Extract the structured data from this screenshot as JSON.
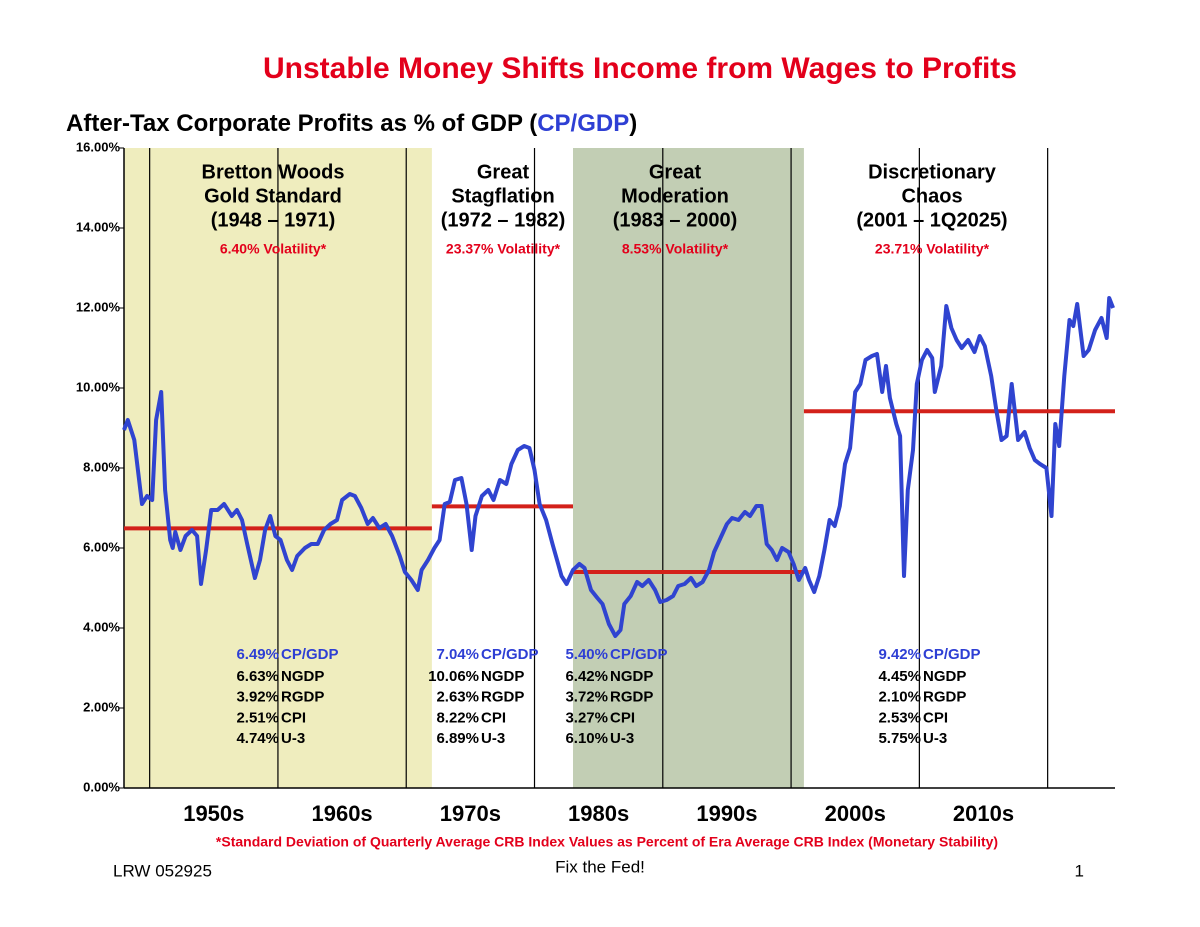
{
  "chart_data": {
    "type": "line",
    "title": "Unstable Money Shifts Income from Wages to Profits",
    "subtitle": [
      "After-Tax Corporate Profits as % of GDP (",
      "CP/GDP",
      ")"
    ],
    "footnote": "*Standard Deviation of Quarterly Average CRB Index Values as Percent of Era Average CRB Index (Monetary Stability)",
    "footer_left": "LRW 052925",
    "footer_center": "Fix the Fed!",
    "footer_right": "1",
    "xlim": [
      1948,
      2025.25
    ],
    "ylim": [
      0,
      16
    ],
    "yticks": [
      {
        "value": 0,
        "label": "0.00%"
      },
      {
        "value": 2,
        "label": "2.00%"
      },
      {
        "value": 4,
        "label": "4.00%"
      },
      {
        "value": 6,
        "label": "6.00%"
      },
      {
        "value": 8,
        "label": "8.00%"
      },
      {
        "value": 10,
        "label": "10.00%"
      },
      {
        "value": 12,
        "label": "12.00%"
      },
      {
        "value": 14,
        "label": "14.00%"
      },
      {
        "value": 16,
        "label": "16.00%"
      }
    ],
    "xticks": [
      1950,
      1960,
      1970,
      1980,
      1990,
      2000,
      2010,
      2020
    ],
    "decade_labels": [
      {
        "value": 1955,
        "label": "1950s"
      },
      {
        "value": 1965,
        "label": "1960s"
      },
      {
        "value": 1975,
        "label": "1970s"
      },
      {
        "value": 1985,
        "label": "1980s"
      },
      {
        "value": 1995,
        "label": "1990s"
      },
      {
        "value": 2005,
        "label": "2000s"
      },
      {
        "value": 2015,
        "label": "2010s"
      }
    ],
    "mean_color": "#d3211a",
    "eras": [
      {
        "lines": [
          "Bretton Woods",
          "Gold Standard",
          "(1948 – 1971)"
        ],
        "volatility": "6.40% Volatility*",
        "start": 1948,
        "end": 1972,
        "shade": "#efedbe",
        "mean": {
          "value": 6.49,
          "label": "6.49%"
        },
        "mean_name": "CP/GDP",
        "stats": [
          [
            "6.63%",
            "NGDP"
          ],
          [
            "3.92%",
            "RGDP"
          ],
          [
            "2.51%",
            "CPI"
          ],
          [
            "4.74%",
            "U-3"
          ]
        ]
      },
      {
        "lines": [
          "Great",
          "Stagflation",
          "(1972 – 1982)"
        ],
        "volatility": "23.37% Volatility*",
        "start": 1972,
        "end": 1983,
        "shade": null,
        "mean": {
          "value": 7.04,
          "label": "7.04%"
        },
        "mean_name": "CP/GDP",
        "stats": [
          [
            "10.06%",
            "NGDP"
          ],
          [
            "2.63%",
            "RGDP"
          ],
          [
            "8.22%",
            "CPI"
          ],
          [
            "6.89%",
            "U-3"
          ]
        ]
      },
      {
        "lines": [
          "Great",
          "Moderation",
          "(1983 – 2000)"
        ],
        "volatility": "8.53% Volatility*",
        "start": 1983,
        "end": 2001,
        "shade": "#c2ceb4",
        "mean": {
          "value": 5.4,
          "label": "5.40%"
        },
        "mean_name": "CP/GDP",
        "stats": [
          [
            "6.42%",
            "NGDP"
          ],
          [
            "3.72%",
            "RGDP"
          ],
          [
            "3.27%",
            "CPI"
          ],
          [
            "6.10%",
            "U-3"
          ]
        ]
      },
      {
        "lines": [
          "Discretionary",
          "Chaos",
          "(2001 – 1Q2025)"
        ],
        "volatility": "23.71% Volatility*",
        "start": 2001,
        "end": 2025.25,
        "shade": null,
        "mean": {
          "value": 9.42,
          "label": "9.42%"
        },
        "mean_name": "CP/GDP",
        "stats": [
          [
            "4.45%",
            "NGDP"
          ],
          [
            "2.10%",
            "RGDP"
          ],
          [
            "2.53%",
            "CPI"
          ],
          [
            "5.75%",
            "U-3"
          ]
        ]
      }
    ],
    "series": [
      {
        "name": "CP/GDP",
        "color": "#3044d0",
        "x": [
          1948.0,
          1948.3,
          1948.8,
          1949.4,
          1949.8,
          1950.2,
          1950.5,
          1950.9,
          1951.2,
          1951.6,
          1951.8,
          1952.0,
          1952.4,
          1952.8,
          1953.3,
          1953.7,
          1954.0,
          1954.4,
          1954.8,
          1955.3,
          1955.8,
          1956.4,
          1956.8,
          1957.2,
          1957.6,
          1958.2,
          1958.6,
          1959.0,
          1959.4,
          1959.8,
          1960.2,
          1960.7,
          1961.1,
          1961.5,
          1962.1,
          1962.6,
          1963.1,
          1963.6,
          1964.1,
          1964.6,
          1965.0,
          1965.6,
          1966.0,
          1966.5,
          1967.0,
          1967.4,
          1967.9,
          1968.4,
          1968.9,
          1969.5,
          1969.9,
          1970.4,
          1970.9,
          1971.2,
          1971.7,
          1972.2,
          1972.6,
          1973.0,
          1973.4,
          1973.8,
          1974.3,
          1974.7,
          1975.1,
          1975.4,
          1975.9,
          1976.4,
          1976.8,
          1977.3,
          1977.8,
          1978.2,
          1978.7,
          1979.2,
          1979.6,
          1980.0,
          1980.4,
          1980.9,
          1981.4,
          1981.8,
          1982.1,
          1982.5,
          1983.0,
          1983.5,
          1983.9,
          1984.4,
          1984.9,
          1985.3,
          1985.8,
          1986.3,
          1986.7,
          1987.0,
          1987.5,
          1988.0,
          1988.4,
          1988.9,
          1989.4,
          1989.8,
          1990.3,
          1990.8,
          1991.2,
          1991.7,
          1992.2,
          1992.6,
          1993.1,
          1993.6,
          1994.0,
          1994.5,
          1995.0,
          1995.4,
          1995.9,
          1996.4,
          1996.8,
          1997.3,
          1997.7,
          1998.1,
          1998.5,
          1998.9,
          1999.3,
          1999.8,
          2000.2,
          2000.6,
          2001.1,
          2001.4,
          2001.8,
          2002.2,
          2002.6,
          2003.0,
          2003.4,
          2003.8,
          2004.2,
          2004.6,
          2005.0,
          2005.4,
          2005.8,
          2006.3,
          2006.7,
          2007.1,
          2007.4,
          2007.7,
          2008.2,
          2008.5,
          2008.8,
          2009.1,
          2009.5,
          2009.8,
          2010.2,
          2010.6,
          2011.0,
          2011.2,
          2011.7,
          2012.1,
          2012.5,
          2012.9,
          2013.3,
          2013.8,
          2014.3,
          2014.7,
          2015.1,
          2015.6,
          2016.0,
          2016.4,
          2016.8,
          2017.2,
          2017.7,
          2018.2,
          2018.6,
          2019.0,
          2019.4,
          2019.9,
          2020.3,
          2020.6,
          2020.9,
          2021.3,
          2021.7,
          2022.0,
          2022.3,
          2022.8,
          2023.2,
          2023.7,
          2024.2,
          2024.6,
          2024.8,
          2025.1
        ],
        "values": [
          8.95,
          9.2,
          8.7,
          7.1,
          7.3,
          7.2,
          9.2,
          9.9,
          7.45,
          6.2,
          6.0,
          6.4,
          5.95,
          6.3,
          6.45,
          6.3,
          5.1,
          5.95,
          6.95,
          6.95,
          7.1,
          6.8,
          6.95,
          6.7,
          6.1,
          5.25,
          5.7,
          6.45,
          6.8,
          6.3,
          6.2,
          5.7,
          5.45,
          5.8,
          6.0,
          6.1,
          6.1,
          6.45,
          6.6,
          6.7,
          7.2,
          7.35,
          7.3,
          7.0,
          6.6,
          6.75,
          6.5,
          6.6,
          6.3,
          5.8,
          5.4,
          5.2,
          4.95,
          5.45,
          5.7,
          6.0,
          6.2,
          7.1,
          7.15,
          7.7,
          7.75,
          7.1,
          5.95,
          6.8,
          7.3,
          7.45,
          7.2,
          7.7,
          7.6,
          8.1,
          8.45,
          8.55,
          8.5,
          7.95,
          7.1,
          6.7,
          6.1,
          5.65,
          5.3,
          5.1,
          5.45,
          5.6,
          5.5,
          4.95,
          4.75,
          4.6,
          4.1,
          3.8,
          3.95,
          4.6,
          4.8,
          5.15,
          5.05,
          5.2,
          4.95,
          4.65,
          4.7,
          4.8,
          5.05,
          5.1,
          5.25,
          5.05,
          5.15,
          5.45,
          5.9,
          6.25,
          6.6,
          6.75,
          6.7,
          6.9,
          6.8,
          7.05,
          7.05,
          6.1,
          5.95,
          5.7,
          6.0,
          5.9,
          5.6,
          5.2,
          5.5,
          5.2,
          4.9,
          5.3,
          5.95,
          6.7,
          6.55,
          7.05,
          8.1,
          8.5,
          9.9,
          10.1,
          10.7,
          10.8,
          10.85,
          9.9,
          10.55,
          9.75,
          9.1,
          8.8,
          5.3,
          7.45,
          8.45,
          10.1,
          10.7,
          10.95,
          10.75,
          9.9,
          10.55,
          12.05,
          11.5,
          11.2,
          11.0,
          11.2,
          10.9,
          11.3,
          11.05,
          10.3,
          9.45,
          8.7,
          8.8,
          10.1,
          8.7,
          8.9,
          8.5,
          8.2,
          8.1,
          8.0,
          6.8,
          9.1,
          8.55,
          10.3,
          11.7,
          11.55,
          12.1,
          10.8,
          10.95,
          11.45,
          11.75,
          11.25,
          12.25,
          12.0
        ]
      }
    ]
  }
}
